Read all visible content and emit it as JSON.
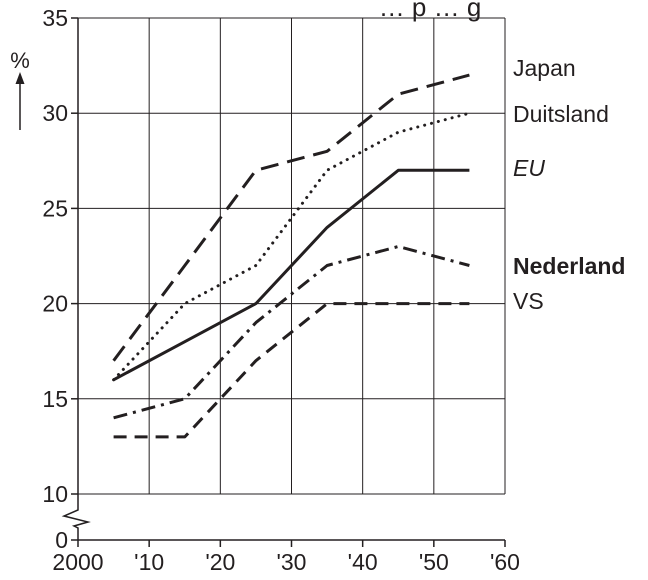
{
  "chart_data": {
    "type": "line",
    "title": "… p … g",
    "ylabel": "%",
    "xlabel": "",
    "x": [
      2005,
      2015,
      2025,
      2035,
      2045,
      2055
    ],
    "xlim": [
      2000,
      2060
    ],
    "ylim": [
      10,
      35
    ],
    "y_axis_break": true,
    "x_ticks": [
      2000,
      2010,
      2020,
      2030,
      2040,
      2050,
      2060
    ],
    "x_tick_labels": [
      "2000",
      "'10",
      "'20",
      "'30",
      "'40",
      "'50",
      "'60"
    ],
    "y_ticks": [
      0,
      10,
      15,
      20,
      25,
      30,
      35
    ],
    "y_tick_labels": [
      "0",
      "10",
      "15",
      "20",
      "25",
      "30",
      "35"
    ],
    "grid": true,
    "legend_placement": "right, labels at line ends",
    "series": [
      {
        "name": "Japan",
        "style": "long-dash",
        "label_style": "normal",
        "values": [
          17,
          22,
          27,
          28,
          31,
          32
        ]
      },
      {
        "name": "Duitsland",
        "style": "dotted",
        "label_style": "normal",
        "values": [
          16,
          20,
          22,
          27,
          29,
          30
        ]
      },
      {
        "name": "EU",
        "style": "solid",
        "label_style": "italic",
        "values": [
          16,
          18,
          20,
          24,
          27,
          27
        ]
      },
      {
        "name": "Nederland",
        "style": "dash-dot",
        "label_style": "bold",
        "values": [
          14,
          15,
          19,
          22,
          23,
          22
        ]
      },
      {
        "name": "VS",
        "style": "dashed",
        "label_style": "normal",
        "values": [
          13,
          13,
          17,
          20,
          20,
          20
        ]
      }
    ]
  }
}
